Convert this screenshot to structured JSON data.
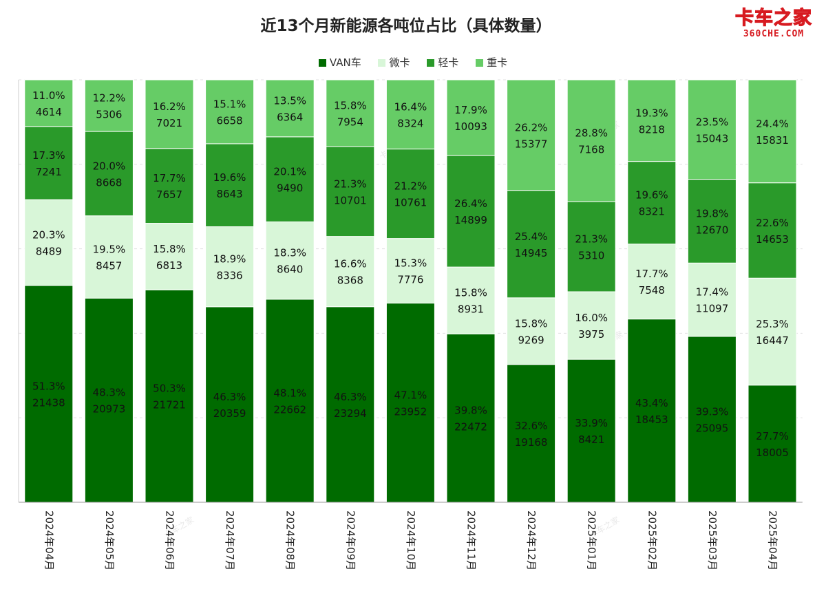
{
  "title": "近13个月新能源各吨位占比（具体数量）",
  "logo": {
    "main": "卡车之家",
    "sub": "360CHE.COM"
  },
  "watermark": "卡车之家",
  "chart_data": {
    "type": "bar",
    "stacked": true,
    "normalized_percent": true,
    "categories": [
      "2024年04月",
      "2024年05月",
      "2024年06月",
      "2024年07月",
      "2024年08月",
      "2024年09月",
      "2024年10月",
      "2024年11月",
      "2024年12月",
      "2025年01月",
      "2025年02月",
      "2025年03月",
      "2025年04月"
    ],
    "legend_position": "top",
    "grid": "horizontal-dashed",
    "series": [
      {
        "name": "VAN车",
        "color": "#006b00",
        "values": [
          21438,
          20973,
          21721,
          20359,
          22662,
          23294,
          23952,
          22472,
          19168,
          8421,
          18453,
          25095,
          18005
        ],
        "percents": [
          "51.3%",
          "48.3%",
          "50.3%",
          "46.3%",
          "48.1%",
          "46.3%",
          "47.1%",
          "39.8%",
          "32.6%",
          "33.9%",
          "43.4%",
          "39.3%",
          "27.7%"
        ]
      },
      {
        "name": "微卡",
        "color": "#d8f6d8",
        "values": [
          8489,
          8457,
          6813,
          8336,
          8640,
          8368,
          7776,
          8931,
          9269,
          3975,
          7548,
          11097,
          16447
        ],
        "percents": [
          "20.3%",
          "19.5%",
          "15.8%",
          "18.9%",
          "18.3%",
          "16.6%",
          "15.3%",
          "15.8%",
          "15.8%",
          "16.0%",
          "17.7%",
          "17.4%",
          "25.3%"
        ]
      },
      {
        "name": "轻卡",
        "color": "#2a9a2a",
        "values": [
          7241,
          8668,
          7657,
          8643,
          9490,
          10701,
          10761,
          14899,
          14945,
          5310,
          8321,
          12670,
          14653
        ],
        "percents": [
          "17.3%",
          "20.0%",
          "17.7%",
          "19.6%",
          "20.1%",
          "21.3%",
          "21.2%",
          "26.4%",
          "25.4%",
          "21.3%",
          "19.6%",
          "19.8%",
          "22.6%"
        ]
      },
      {
        "name": "重卡",
        "color": "#66cc66",
        "values": [
          4614,
          5306,
          7021,
          6658,
          6364,
          7954,
          8324,
          10093,
          15377,
          7168,
          8218,
          15043,
          15831
        ],
        "percents": [
          "11.0%",
          "12.2%",
          "16.2%",
          "15.1%",
          "13.5%",
          "15.8%",
          "16.4%",
          "17.9%",
          "26.2%",
          "28.8%",
          "19.3%",
          "23.5%",
          "24.4%"
        ]
      }
    ]
  }
}
